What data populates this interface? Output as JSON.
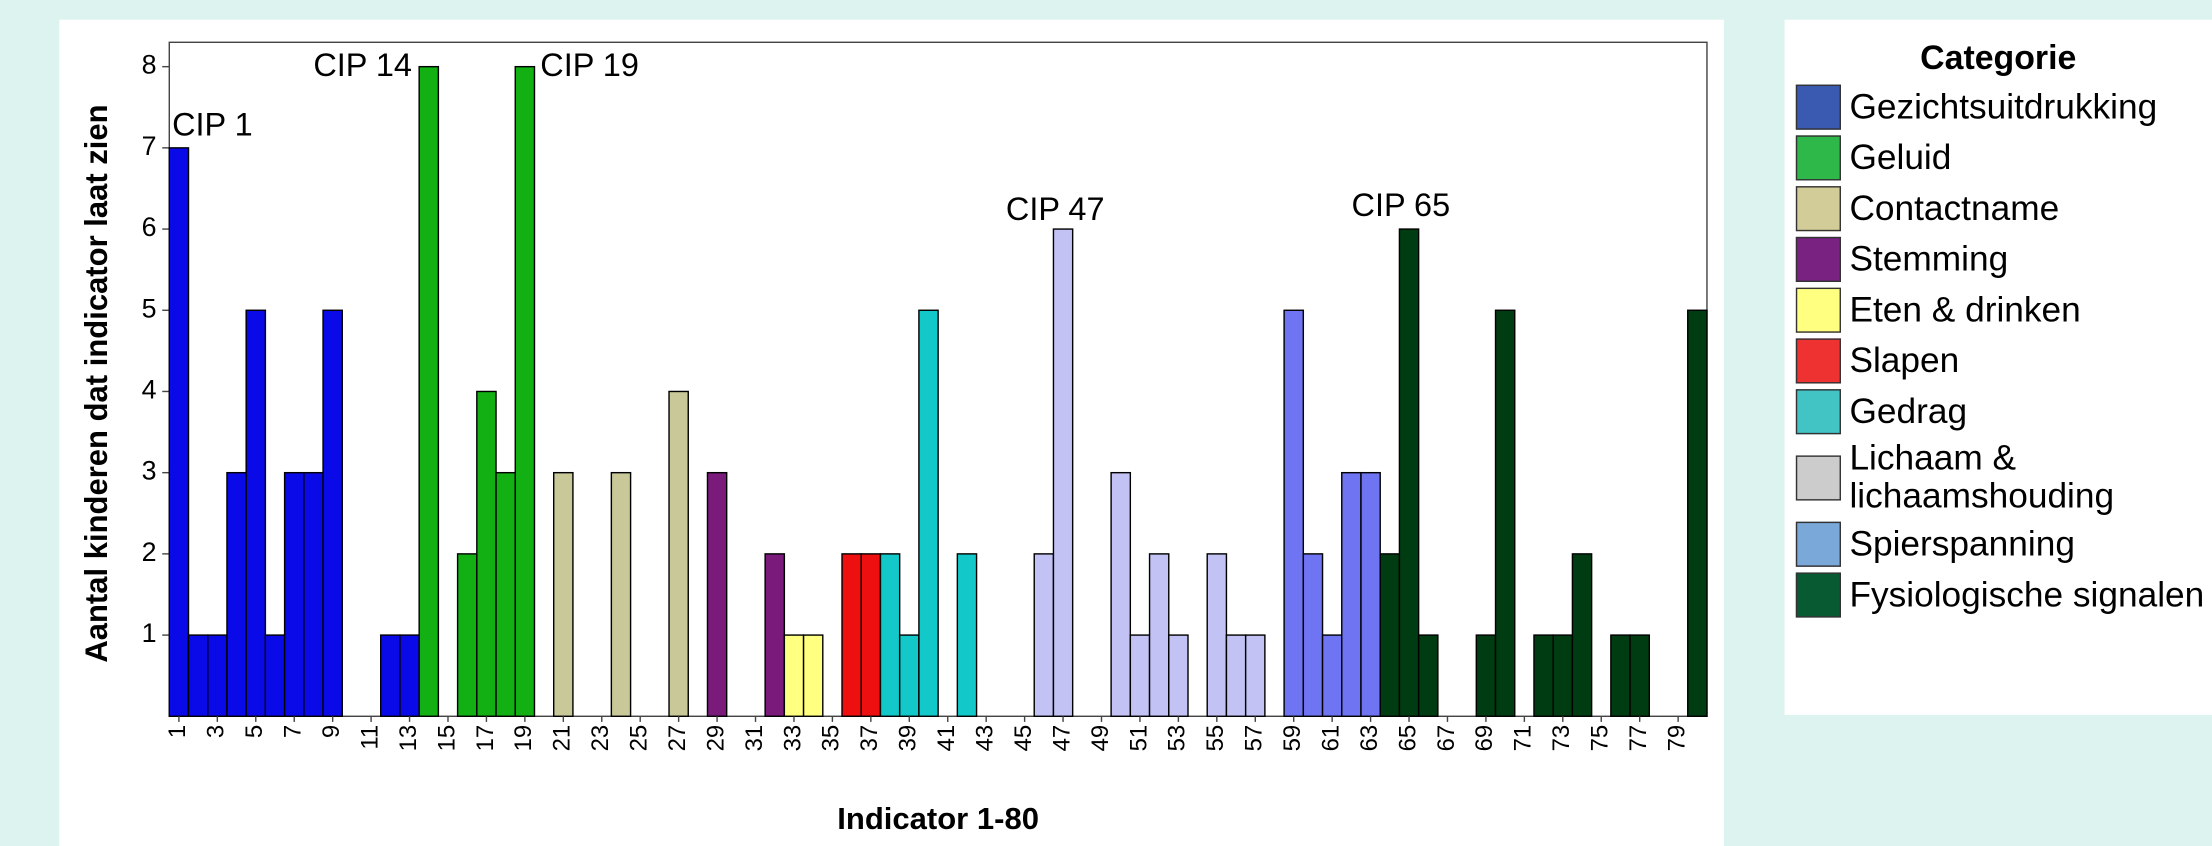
{
  "chart_data": {
    "type": "bar",
    "y_label": "Aantal kinderen dat indicator laat zien",
    "x_label": "Indicator 1-80",
    "categories": [
      "1",
      null,
      "3",
      null,
      "5",
      null,
      "7",
      null,
      "9",
      null,
      "11",
      null,
      "13",
      null,
      "15",
      null,
      "17",
      null,
      "19",
      null,
      "21",
      null,
      "23",
      null,
      "25",
      null,
      "27",
      null,
      "29",
      null,
      "31",
      null,
      "33",
      null,
      "35",
      null,
      "37",
      null,
      "39",
      null,
      "41",
      null,
      "43",
      null,
      "45",
      null,
      "47",
      null,
      "49",
      null,
      "51",
      null,
      "53",
      null,
      "55",
      null,
      "57",
      null,
      "59",
      null,
      "61",
      null,
      "63",
      null,
      "65",
      null,
      "67",
      null,
      "69",
      null,
      "71",
      null,
      "73",
      null,
      "75",
      null,
      "77",
      null,
      "79",
      null
    ],
    "values": [
      7,
      1,
      1,
      3,
      5,
      1,
      3,
      3,
      5,
      0,
      0,
      1,
      1,
      8,
      0,
      2,
      4,
      3,
      8,
      0,
      3,
      0,
      0,
      3,
      0,
      0,
      4,
      0,
      3,
      0,
      0,
      2,
      1,
      1,
      0,
      2,
      2,
      2,
      1,
      5,
      0,
      2,
      0,
      0,
      0,
      2,
      6,
      0,
      0,
      3,
      1,
      2,
      1,
      0,
      2,
      1,
      1,
      0,
      5,
      2,
      1,
      3,
      3,
      2,
      6,
      1,
      0,
      0,
      1,
      5,
      0,
      1,
      1,
      2,
      0,
      1,
      1,
      0,
      0,
      5
    ],
    "colors": [
      "#0a0ae8",
      "#0a0ae8",
      "#0a0ae8",
      "#0a0ae8",
      "#0a0ae8",
      "#0a0ae8",
      "#0a0ae8",
      "#0a0ae8",
      "#0a0ae8",
      "#0a0ae8",
      "#0a0ae8",
      "#0a0ae8",
      "#0a0ae8",
      "#12b012",
      "#12b012",
      "#12b012",
      "#12b012",
      "#12b012",
      "#12b012",
      "#c8c898",
      "#c8c898",
      "#c8c898",
      "#c8c898",
      "#c8c898",
      "#c8c898",
      "#c8c898",
      "#c8c898",
      "#7a1a7a",
      "#7a1a7a",
      "#7a1a7a",
      "#7a1a7a",
      "#7a1a7a",
      "#ffff80",
      "#ffff80",
      "#ee1010",
      "#ee1010",
      "#ee1010",
      "#12c8c8",
      "#12c8c8",
      "#12c8c8",
      "#12c8c8",
      "#12c8c8",
      "#c2c2f4",
      "#c2c2f4",
      "#c2c2f4",
      "#c2c2f4",
      "#c2c2f4",
      "#c2c2f4",
      "#c2c2f4",
      "#c2c2f4",
      "#c2c2f4",
      "#c2c2f4",
      "#c2c2f4",
      "#c2c2f4",
      "#c2c2f4",
      "#c2c2f4",
      "#c2c2f4",
      "#6e74f2",
      "#6e74f2",
      "#6e74f2",
      "#6e74f2",
      "#6e74f2",
      "#6e74f2",
      "#003c12",
      "#003c12",
      "#003c12",
      "#003c12",
      "#003c12",
      "#003c12",
      "#003c12",
      "#003c12",
      "#003c12",
      "#003c12",
      "#003c12",
      "#003c12",
      "#003c12",
      "#003c12",
      "#003c12",
      "#003c12",
      "#003c12"
    ],
    "ylim": [
      0,
      8.3
    ],
    "yticks": [
      1,
      2,
      3,
      4,
      5,
      6,
      7,
      8
    ],
    "annotations": [
      "CIP 1",
      "CIP 14",
      "CIP 19",
      "CIP 47",
      "CIP 65"
    ],
    "legend": {
      "title": "Categorie",
      "items": [
        {
          "label": "Gezichtsuitdrukking",
          "color": "#3a5ab2"
        },
        {
          "label": "Geluid",
          "color": "#2eb84a"
        },
        {
          "label": "Contactname",
          "color": "#d2cc98"
        },
        {
          "label": "Stemming",
          "color": "#7a2282"
        },
        {
          "label": "Eten & drinken",
          "color": "#ffff80"
        },
        {
          "label": "Slapen",
          "color": "#ee3232"
        },
        {
          "label": "Gedrag",
          "color": "#42c4c4"
        },
        {
          "label": "Lichaam & lichaamshouding",
          "color": "#cccccc"
        },
        {
          "label": "Spierspanning",
          "color": "#7aa8d8"
        },
        {
          "label": "Fysiologische signalen",
          "color": "#085a32"
        }
      ]
    }
  }
}
